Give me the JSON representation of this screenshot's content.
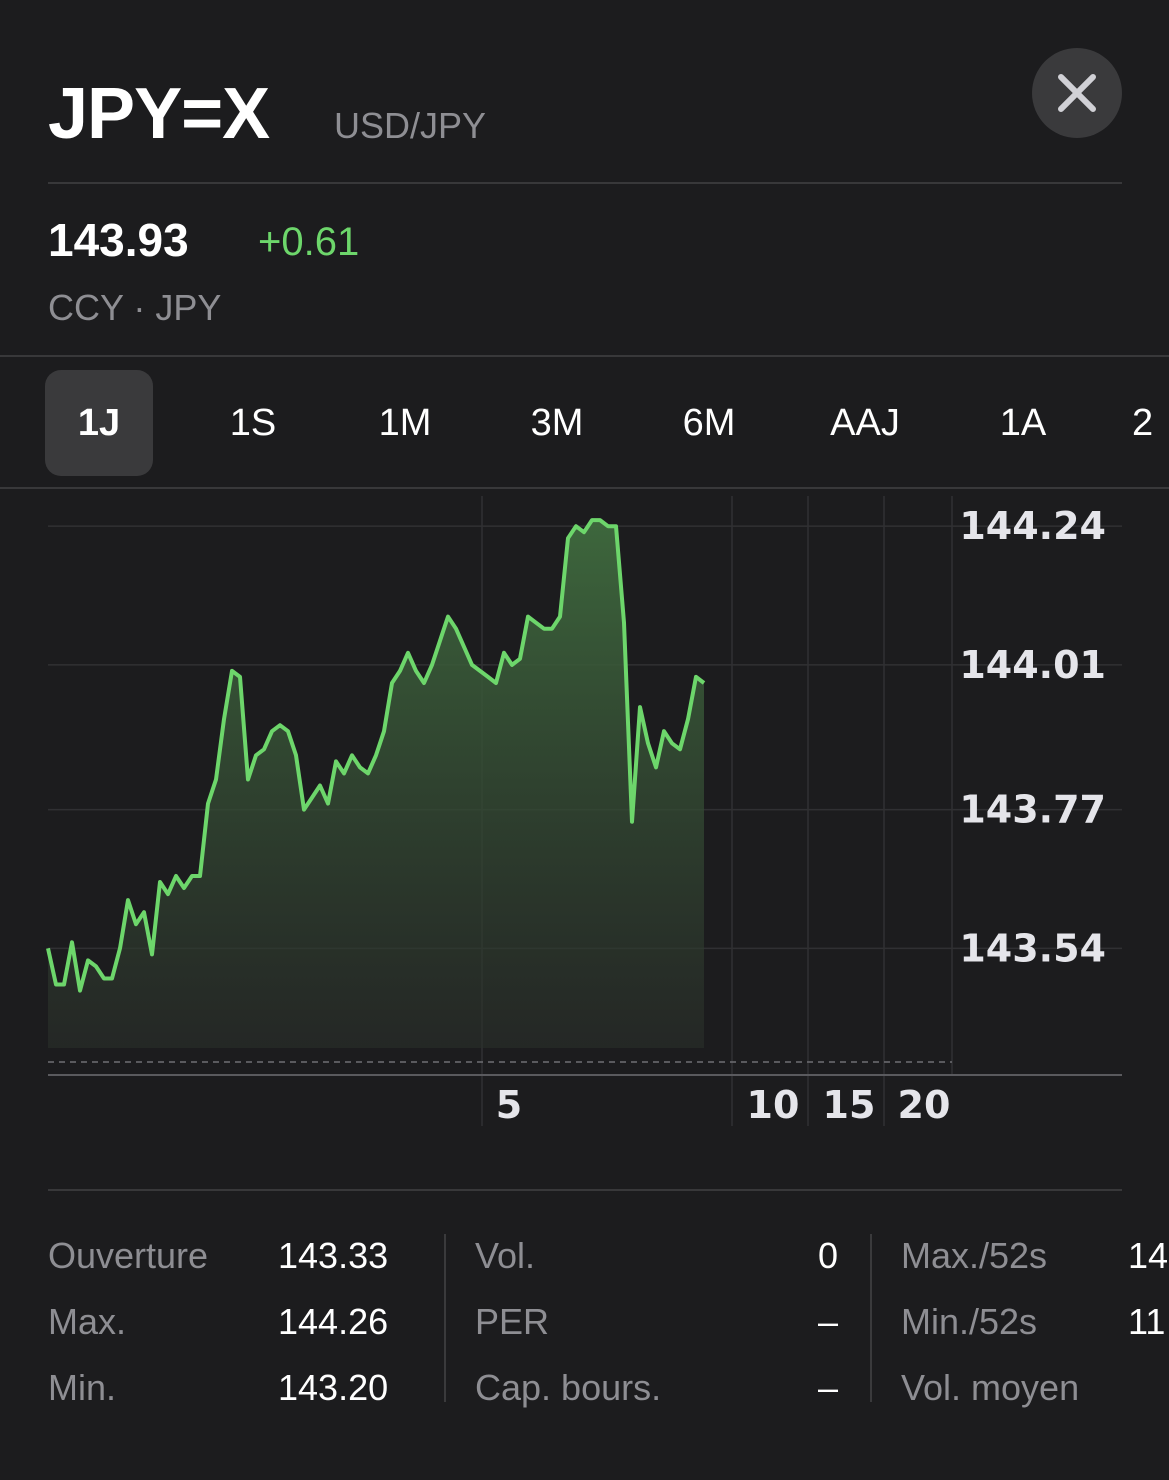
{
  "header": {
    "symbol": "JPY=X",
    "pair": "USD/JPY",
    "close_icon": "close-icon"
  },
  "quote": {
    "price": "143.93",
    "change": "+0.61",
    "exchange": "CCY · JPY"
  },
  "colors": {
    "accent_green": "#6dd66b",
    "background": "#1c1c1e",
    "muted_text": "#8e8e93"
  },
  "tabs": [
    {
      "label": "1J",
      "active": true
    },
    {
      "label": "1S",
      "active": false
    },
    {
      "label": "1M",
      "active": false
    },
    {
      "label": "3M",
      "active": false
    },
    {
      "label": "6M",
      "active": false
    },
    {
      "label": "AAJ",
      "active": false
    },
    {
      "label": "1A",
      "active": false
    },
    {
      "label": "2",
      "active": false
    }
  ],
  "chart_data": {
    "type": "area",
    "y_ticks": [
      "144.24",
      "144.01",
      "143.77",
      "143.54"
    ],
    "x_ticks": [
      "5",
      "10",
      "15",
      "20"
    ],
    "ylim": [
      143.33,
      144.29
    ],
    "grid": true,
    "points": [
      143.54,
      143.48,
      143.48,
      143.55,
      143.47,
      143.52,
      143.51,
      143.49,
      143.49,
      143.54,
      143.62,
      143.58,
      143.6,
      143.53,
      143.65,
      143.63,
      143.66,
      143.64,
      143.66,
      143.66,
      143.78,
      143.82,
      143.92,
      144.0,
      143.99,
      143.82,
      143.86,
      143.87,
      143.9,
      143.91,
      143.9,
      143.86,
      143.77,
      143.79,
      143.81,
      143.78,
      143.85,
      143.83,
      143.86,
      143.84,
      143.83,
      143.86,
      143.9,
      143.98,
      144.0,
      144.03,
      144.0,
      143.98,
      144.01,
      144.05,
      144.09,
      144.07,
      144.04,
      144.01,
      144.0,
      143.99,
      143.98,
      144.03,
      144.01,
      144.02,
      144.09,
      144.08,
      144.07,
      144.07,
      144.09,
      144.22,
      144.24,
      144.23,
      144.25,
      144.25,
      144.24,
      144.24,
      144.08,
      143.75,
      143.94,
      143.88,
      143.84,
      143.9,
      143.88,
      143.87,
      143.92,
      143.99,
      143.98
    ]
  },
  "stats": {
    "col1": [
      {
        "label": "Ouverture",
        "value": "143.33"
      },
      {
        "label": "Max.",
        "value": "144.26"
      },
      {
        "label": "Min.",
        "value": "143.20"
      }
    ],
    "col2": [
      {
        "label": "Vol.",
        "value": "0"
      },
      {
        "label": "PER",
        "value": "–"
      },
      {
        "label": "Cap. bours.",
        "value": "–"
      }
    ],
    "col3": [
      {
        "label": "Max./52s",
        "value": "14"
      },
      {
        "label": "Min./52s",
        "value": "11"
      },
      {
        "label": "Vol. moyen",
        "value": ""
      }
    ]
  }
}
